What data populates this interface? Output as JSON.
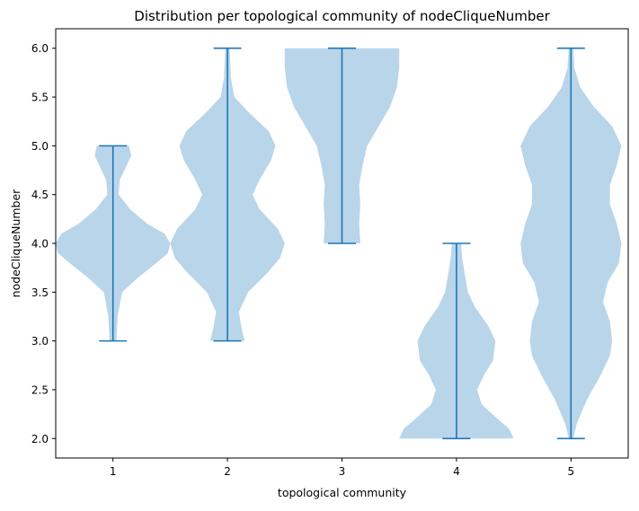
{
  "chart_data": {
    "type": "violin",
    "title": "Distribution per topological community of nodeCliqueNumber",
    "xlabel": "topological community",
    "ylabel": "nodeCliqueNumber",
    "categories": [
      "1",
      "2",
      "3",
      "4",
      "5"
    ],
    "xticks": [
      "1",
      "2",
      "3",
      "4",
      "5"
    ],
    "yticks": [
      "2.0",
      "2.5",
      "3.0",
      "3.5",
      "4.0",
      "4.5",
      "5.0",
      "5.5",
      "6.0"
    ],
    "ylim": [
      1.8,
      6.2
    ],
    "grid": false,
    "colors": {
      "body": "#b9d5ea",
      "line": "#1f77b4"
    },
    "violins": [
      {
        "category": "1",
        "min": 3,
        "max": 5,
        "profile": [
          [
            3.0,
            0.03
          ],
          [
            3.25,
            0.04
          ],
          [
            3.5,
            0.08
          ],
          [
            3.65,
            0.22
          ],
          [
            3.8,
            0.38
          ],
          [
            3.9,
            0.48
          ],
          [
            4.0,
            0.5
          ],
          [
            4.1,
            0.45
          ],
          [
            4.2,
            0.3
          ],
          [
            4.35,
            0.15
          ],
          [
            4.5,
            0.05
          ],
          [
            4.65,
            0.06
          ],
          [
            4.8,
            0.12
          ],
          [
            4.9,
            0.16
          ],
          [
            5.0,
            0.14
          ]
        ]
      },
      {
        "category": "2",
        "min": 3,
        "max": 6,
        "profile": [
          [
            3.0,
            0.15
          ],
          [
            3.15,
            0.12
          ],
          [
            3.3,
            0.1
          ],
          [
            3.5,
            0.18
          ],
          [
            3.7,
            0.35
          ],
          [
            3.85,
            0.46
          ],
          [
            4.0,
            0.5
          ],
          [
            4.15,
            0.44
          ],
          [
            4.35,
            0.28
          ],
          [
            4.5,
            0.22
          ],
          [
            4.65,
            0.28
          ],
          [
            4.85,
            0.38
          ],
          [
            5.0,
            0.42
          ],
          [
            5.15,
            0.36
          ],
          [
            5.35,
            0.18
          ],
          [
            5.5,
            0.06
          ],
          [
            5.7,
            0.03
          ],
          [
            6.0,
            0.02
          ]
        ]
      },
      {
        "category": "3",
        "min": 4,
        "max": 6,
        "profile": [
          [
            4.0,
            0.16
          ],
          [
            4.2,
            0.15
          ],
          [
            4.4,
            0.16
          ],
          [
            4.6,
            0.15
          ],
          [
            4.8,
            0.18
          ],
          [
            5.0,
            0.22
          ],
          [
            5.2,
            0.32
          ],
          [
            5.4,
            0.42
          ],
          [
            5.6,
            0.48
          ],
          [
            5.8,
            0.5
          ],
          [
            6.0,
            0.5
          ]
        ]
      },
      {
        "category": "4",
        "min": 2,
        "max": 4,
        "profile": [
          [
            2.0,
            0.5
          ],
          [
            2.1,
            0.46
          ],
          [
            2.2,
            0.36
          ],
          [
            2.35,
            0.22
          ],
          [
            2.5,
            0.18
          ],
          [
            2.65,
            0.24
          ],
          [
            2.8,
            0.32
          ],
          [
            3.0,
            0.34
          ],
          [
            3.15,
            0.28
          ],
          [
            3.35,
            0.16
          ],
          [
            3.5,
            0.1
          ],
          [
            3.7,
            0.07
          ],
          [
            3.85,
            0.05
          ],
          [
            4.0,
            0.04
          ]
        ]
      },
      {
        "category": "5",
        "min": 2,
        "max": 6,
        "profile": [
          [
            2.0,
            0.02
          ],
          [
            2.15,
            0.05
          ],
          [
            2.4,
            0.14
          ],
          [
            2.65,
            0.26
          ],
          [
            2.85,
            0.34
          ],
          [
            3.0,
            0.36
          ],
          [
            3.2,
            0.34
          ],
          [
            3.4,
            0.28
          ],
          [
            3.6,
            0.32
          ],
          [
            3.8,
            0.42
          ],
          [
            4.0,
            0.44
          ],
          [
            4.2,
            0.4
          ],
          [
            4.4,
            0.34
          ],
          [
            4.6,
            0.34
          ],
          [
            4.8,
            0.4
          ],
          [
            5.0,
            0.44
          ],
          [
            5.2,
            0.36
          ],
          [
            5.4,
            0.2
          ],
          [
            5.6,
            0.08
          ],
          [
            5.8,
            0.03
          ],
          [
            6.0,
            0.02
          ]
        ]
      }
    ]
  }
}
